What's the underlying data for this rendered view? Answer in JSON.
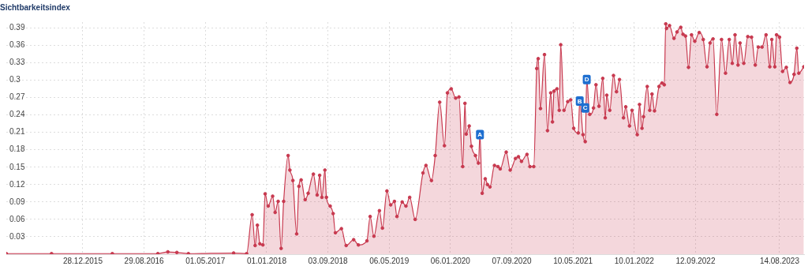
{
  "chart_data": {
    "type": "area",
    "title": "Sichtbarkeitsindex",
    "color": "#c8394f",
    "marker": "circle",
    "grid": true,
    "xlim": [
      "2015-02-25",
      "2023-11-20"
    ],
    "ylim": [
      0,
      0.4
    ],
    "yticks": [
      0.03,
      0.06,
      0.09,
      0.12,
      0.15,
      0.18,
      0.21,
      0.24,
      0.27,
      0.3,
      0.33,
      0.36,
      0.39
    ],
    "xticks": [
      {
        "value": "2015-12-28",
        "label": "28.12.2015"
      },
      {
        "value": "2016-08-29",
        "label": "29.08.2016"
      },
      {
        "value": "2017-05-01",
        "label": "01.05.2017"
      },
      {
        "value": "2018-01-01",
        "label": "01.01.2018"
      },
      {
        "value": "2018-09-03",
        "label": "03.09.2018"
      },
      {
        "value": "2019-05-06",
        "label": "06.05.2019"
      },
      {
        "value": "2020-01-06",
        "label": "06.01.2020"
      },
      {
        "value": "2020-09-07",
        "label": "07.09.2020"
      },
      {
        "value": "2021-05-10",
        "label": "10.05.2021"
      },
      {
        "value": "2022-01-10",
        "label": "10.01.2022"
      },
      {
        "value": "2022-09-12",
        "label": "12.09.2022"
      },
      {
        "value": "2023-08-14",
        "label": "14.08.2023"
      }
    ],
    "x": [
      "2015-02-25",
      "2015-08-25",
      "2016-04-24",
      "2016-10-23",
      "2016-12-02",
      "2017-01-07",
      "2017-02-22",
      "2017-08-22",
      "2017-10-13",
      "2017-11-04",
      "2017-11-16",
      "2017-11-25",
      "2017-12-05",
      "2017-12-17",
      "2017-12-26",
      "2018-01-07",
      "2018-01-25",
      "2018-02-04",
      "2018-02-16",
      "2018-02-28",
      "2018-03-10",
      "2018-03-28",
      "2018-04-04",
      "2018-04-16",
      "2018-05-01",
      "2018-05-10",
      "2018-05-19",
      "2018-06-04",
      "2018-06-16",
      "2018-07-07",
      "2018-07-22",
      "2018-08-01",
      "2018-08-10",
      "2018-08-22",
      "2018-08-28",
      "2018-09-12",
      "2018-09-24",
      "2018-10-03",
      "2018-10-27",
      "2018-11-15",
      "2018-12-15",
      "2019-01-03",
      "2019-02-06",
      "2019-02-19",
      "2019-03-06",
      "2019-03-28",
      "2019-04-09",
      "2019-04-27",
      "2019-05-12",
      "2019-05-27",
      "2019-06-06",
      "2019-06-27",
      "2019-07-12",
      "2019-07-27",
      "2019-08-18",
      "2019-09-18",
      "2019-09-30",
      "2019-10-22",
      "2019-11-06",
      "2019-11-24",
      "2019-12-13",
      "2019-12-25",
      "2020-01-09",
      "2020-01-27",
      "2020-02-09",
      "2020-02-24",
      "2020-03-04",
      "2020-03-09",
      "2020-03-21",
      "2020-03-30",
      "2020-04-15",
      "2020-04-27",
      "2020-05-03",
      "2020-05-12",
      "2020-05-24",
      "2020-06-02",
      "2020-06-12",
      "2020-06-30",
      "2020-07-14",
      "2020-07-23",
      "2020-08-16",
      "2020-09-01",
      "2020-09-22",
      "2020-10-04",
      "2020-10-16",
      "2020-11-07",
      "2020-11-19",
      "2020-12-04",
      "2020-12-16",
      "2020-12-22",
      "2020-12-31",
      "2021-01-16",
      "2021-01-28",
      "2021-02-10",
      "2021-02-17",
      "2021-02-23",
      "2021-03-07",
      "2021-03-16",
      "2021-03-22",
      "2021-04-04",
      "2021-04-19",
      "2021-05-01",
      "2021-05-13",
      "2021-05-31",
      "2021-06-06",
      "2021-06-19",
      "2021-06-28",
      "2021-07-04",
      "2021-07-16",
      "2021-07-31",
      "2021-08-10",
      "2021-08-22",
      "2021-09-06",
      "2021-09-16",
      "2021-09-22",
      "2021-10-04",
      "2021-10-19",
      "2021-10-31",
      "2021-11-12",
      "2021-11-28",
      "2021-12-07",
      "2021-12-22",
      "2022-01-01",
      "2022-01-22",
      "2022-01-31",
      "2022-02-10",
      "2022-02-16",
      "2022-03-03",
      "2022-03-13",
      "2022-03-22",
      "2022-04-01",
      "2022-04-19",
      "2022-05-01",
      "2022-05-10",
      "2022-05-16",
      "2022-05-19",
      "2022-05-31",
      "2022-06-18",
      "2022-06-30",
      "2022-07-15",
      "2022-07-24",
      "2022-08-03",
      "2022-08-15",
      "2022-08-27",
      "2022-09-09",
      "2022-09-27",
      "2022-10-13",
      "2022-10-28",
      "2022-11-09",
      "2022-11-21",
      "2022-12-06",
      "2022-12-25",
      "2023-01-10",
      "2023-01-25",
      "2023-02-06",
      "2023-02-17",
      "2023-03-01",
      "2023-03-09",
      "2023-03-24",
      "2023-04-09",
      "2023-04-24",
      "2023-05-09",
      "2023-05-21",
      "2023-06-05",
      "2023-06-21",
      "2023-07-06",
      "2023-07-14",
      "2023-07-26",
      "2023-08-02",
      "2023-08-14",
      "2023-08-26",
      "2023-09-10",
      "2023-09-25",
      "2023-10-11",
      "2023-10-22",
      "2023-10-30",
      "2023-11-19"
    ],
    "values": [
      0.001,
      0.001,
      0.001,
      0.001,
      0.004,
      0.003,
      0.001,
      0.002,
      0.001,
      0.068,
      0.015,
      0.05,
      0.018,
      0.016,
      0.104,
      0.083,
      0.1,
      0.072,
      0.091,
      0.01,
      0.091,
      0.17,
      0.145,
      0.127,
      0.035,
      0.117,
      0.128,
      0.094,
      0.105,
      0.138,
      0.102,
      0.136,
      0.098,
      0.145,
      0.098,
      0.083,
      0.07,
      0.037,
      0.044,
      0.015,
      0.025,
      0.016,
      0.023,
      0.065,
      0.031,
      0.075,
      0.045,
      0.109,
      0.085,
      0.091,
      0.065,
      0.09,
      0.083,
      0.098,
      0.06,
      0.14,
      0.153,
      0.127,
      0.17,
      0.262,
      0.187,
      0.278,
      0.285,
      0.269,
      0.271,
      0.151,
      0.26,
      0.207,
      0.221,
      0.186,
      0.17,
      0.157,
      0.206,
      0.105,
      0.13,
      0.12,
      0.116,
      0.153,
      0.151,
      0.147,
      0.176,
      0.145,
      0.165,
      0.168,
      0.16,
      0.172,
      0.151,
      0.151,
      0.32,
      0.337,
      0.251,
      0.344,
      0.213,
      0.278,
      0.228,
      0.281,
      0.285,
      0.248,
      0.361,
      0.248,
      0.263,
      0.266,
      0.217,
      0.209,
      0.264,
      0.206,
      0.194,
      0.301,
      0.241,
      0.252,
      0.292,
      0.255,
      0.303,
      0.235,
      0.274,
      0.248,
      0.308,
      0.28,
      0.301,
      0.235,
      0.254,
      0.221,
      0.248,
      0.206,
      0.258,
      0.217,
      0.237,
      0.289,
      0.248,
      0.276,
      0.247,
      0.289,
      0.295,
      0.292,
      0.397,
      0.389,
      0.394,
      0.372,
      0.383,
      0.391,
      0.379,
      0.376,
      0.322,
      0.378,
      0.367,
      0.382,
      0.37,
      0.323,
      0.364,
      0.371,
      0.241,
      0.37,
      0.312,
      0.37,
      0.329,
      0.378,
      0.326,
      0.364,
      0.329,
      0.375,
      0.374,
      0.326,
      0.357,
      0.357,
      0.378,
      0.323,
      0.37,
      0.323,
      0.378,
      0.374,
      0.315,
      0.322,
      0.296,
      0.31,
      0.355,
      0.312,
      0.323
    ],
    "annotations": [
      {
        "text": "A",
        "x": "2020-05-03",
        "y": 0.206
      },
      {
        "text": "B",
        "x": "2021-06-06",
        "y": 0.264
      },
      {
        "text": "C",
        "x": "2021-06-28",
        "y": 0.252
      },
      {
        "text": "D",
        "x": "2021-07-04",
        "y": 0.301
      }
    ]
  }
}
